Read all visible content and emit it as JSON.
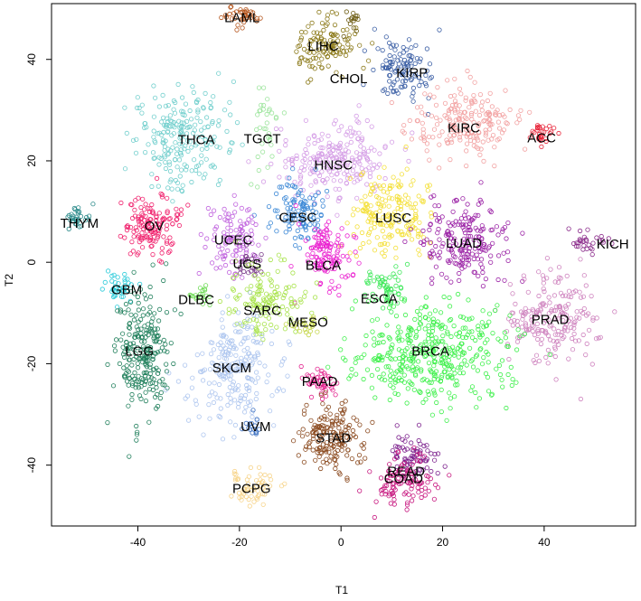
{
  "chart_data": {
    "type": "scatter",
    "title": "",
    "xlabel": "T1",
    "ylabel": "T2",
    "xlim": [
      -57,
      58
    ],
    "ylim": [
      -52,
      51
    ],
    "xticks": [
      -40,
      -20,
      0,
      20,
      40
    ],
    "yticks": [
      -40,
      -20,
      0,
      20,
      40
    ],
    "grid": false,
    "legend": "none",
    "clusters": [
      {
        "label": "LAML",
        "x": -20,
        "y": 48.5,
        "sx": 2.2,
        "sy": 1.0,
        "n": 40,
        "color": "#b5561e"
      },
      {
        "label": "LIHC",
        "x": -3,
        "y": 43,
        "sx": 3.5,
        "sy": 2.8,
        "n": 120,
        "color": "#8c7a1a"
      },
      {
        "label": "CHOL",
        "x": 2.5,
        "y": 47,
        "sx": 1.0,
        "sy": 1.5,
        "n": 15,
        "color": "#6b5a10"
      },
      {
        "label": "KIRP",
        "x": 12,
        "y": 38.5,
        "sx": 3.0,
        "sy": 3.2,
        "n": 110,
        "color": "#3b5fa5"
      },
      {
        "label": "KIRC",
        "x": 24,
        "y": 28,
        "sx": 5.0,
        "sy": 3.5,
        "n": 200,
        "color": "#f2a1a1"
      },
      {
        "label": "ACC",
        "x": 39.5,
        "y": 25,
        "sx": 1.6,
        "sy": 1.0,
        "n": 30,
        "color": "#e8253a"
      },
      {
        "label": "THCA",
        "x": -31,
        "y": 24,
        "sx": 4.5,
        "sy": 5.0,
        "n": 220,
        "color": "#72cfcd"
      },
      {
        "label": "TGCT",
        "x": -15,
        "y": 26,
        "sx": 1.2,
        "sy": 4.0,
        "n": 35,
        "color": "#9ee59e"
      },
      {
        "label": "HNSC",
        "x": -1,
        "y": 20,
        "sx": 5.5,
        "sy": 3.8,
        "n": 230,
        "color": "#d59ee6"
      },
      {
        "label": "THYM",
        "x": -52,
        "y": 8.5,
        "sx": 1.2,
        "sy": 1.3,
        "n": 30,
        "color": "#2a8a8a"
      },
      {
        "label": "OV",
        "x": -37,
        "y": 7.5,
        "sx": 2.8,
        "sy": 3.0,
        "n": 140,
        "color": "#f0236e"
      },
      {
        "label": "CESC",
        "x": -8,
        "y": 9.5,
        "sx": 2.8,
        "sy": 3.0,
        "n": 110,
        "color": "#3a87d6"
      },
      {
        "label": "LUSC",
        "x": 9.5,
        "y": 9.5,
        "sx": 4.0,
        "sy": 4.0,
        "n": 190,
        "color": "#f4e03b"
      },
      {
        "label": "LUAD",
        "x": 24,
        "y": 4,
        "sx": 4.0,
        "sy": 4.2,
        "n": 200,
        "color": "#9b23a6"
      },
      {
        "label": "KICH",
        "x": 49,
        "y": 4,
        "sx": 2.2,
        "sy": 1.0,
        "n": 30,
        "color": "#8a2a8a"
      },
      {
        "label": "UCEC",
        "x": -21,
        "y": 5,
        "sx": 2.4,
        "sy": 3.2,
        "n": 110,
        "color": "#c063de"
      },
      {
        "label": "UCS",
        "x": -18,
        "y": -0.5,
        "sx": 1.4,
        "sy": 1.2,
        "n": 25,
        "color": "#7a3a8a"
      },
      {
        "label": "BLCA",
        "x": -3,
        "y": 1.5,
        "sx": 2.6,
        "sy": 3.2,
        "n": 130,
        "color": "#ea23d0"
      },
      {
        "label": "GBM",
        "x": -43,
        "y": -5.5,
        "sx": 1.8,
        "sy": 1.3,
        "n": 40,
        "color": "#28cad9"
      },
      {
        "label": "DLBC",
        "x": -28,
        "y": -6.5,
        "sx": 1.2,
        "sy": 1.0,
        "n": 20,
        "color": "#6edb55"
      },
      {
        "label": "ESCA",
        "x": 9,
        "y": -5,
        "sx": 2.0,
        "sy": 1.8,
        "n": 60,
        "color": "#3fe85a"
      },
      {
        "label": "SARC",
        "x": -14,
        "y": -7.5,
        "sx": 3.8,
        "sy": 3.8,
        "n": 140,
        "color": "#a8e34b"
      },
      {
        "label": "MESO",
        "x": -7,
        "y": -12,
        "sx": 1.5,
        "sy": 1.2,
        "n": 25,
        "color": "#c5d64b"
      },
      {
        "label": "PRAD",
        "x": 41.5,
        "y": -11,
        "sx": 4.5,
        "sy": 4.5,
        "n": 200,
        "color": "#cf84bf"
      },
      {
        "label": "LGG",
        "x": -39,
        "y": -18,
        "sx": 2.8,
        "sy": 6.0,
        "n": 240,
        "color": "#22805d"
      },
      {
        "label": "BRCA",
        "x": 18,
        "y": -18,
        "sx": 8.0,
        "sy": 5.0,
        "n": 420,
        "color": "#3ef04b"
      },
      {
        "label": "SKCM",
        "x": -21,
        "y": -21,
        "sx": 4.0,
        "sy": 5.0,
        "n": 230,
        "color": "#aec6ef"
      },
      {
        "label": "PAAD",
        "x": -4,
        "y": -24,
        "sx": 2.0,
        "sy": 1.4,
        "n": 45,
        "color": "#e3238e"
      },
      {
        "label": "UVM",
        "x": -17,
        "y": -32.5,
        "sx": 1.0,
        "sy": 1.0,
        "n": 15,
        "color": "#3a6fc0"
      },
      {
        "label": "STAD",
        "x": -1.5,
        "y": -34.5,
        "sx": 3.2,
        "sy": 3.2,
        "n": 170,
        "color": "#8b4a1f"
      },
      {
        "label": "READ",
        "x": 14,
        "y": -38,
        "sx": 2.2,
        "sy": 2.5,
        "n": 70,
        "color": "#7b1f8c"
      },
      {
        "label": "COAD",
        "x": 12.5,
        "y": -43,
        "sx": 2.8,
        "sy": 2.5,
        "n": 110,
        "color": "#c7177f"
      },
      {
        "label": "PCPG",
        "x": -17.5,
        "y": -44.5,
        "sx": 2.2,
        "sy": 1.7,
        "n": 60,
        "color": "#f7d48a"
      }
    ],
    "labels": [
      {
        "text": "LAML",
        "x": -19.5,
        "y": 48.2
      },
      {
        "text": "LIHC",
        "x": -3.5,
        "y": 42.6
      },
      {
        "text": "CHOL",
        "x": 1.5,
        "y": 36.2
      },
      {
        "text": "KIRP",
        "x": 14,
        "y": 37.4
      },
      {
        "text": "KIRC",
        "x": 24.2,
        "y": 26.5
      },
      {
        "text": "ACC",
        "x": 39.5,
        "y": 24.5
      },
      {
        "text": "THCA",
        "x": -28.5,
        "y": 24.2
      },
      {
        "text": "TGCT",
        "x": -15.5,
        "y": 24.4
      },
      {
        "text": "HNSC",
        "x": -1.5,
        "y": 19.2
      },
      {
        "text": "THYM",
        "x": -51.5,
        "y": 7.7
      },
      {
        "text": "OV",
        "x": -36.8,
        "y": 7.2
      },
      {
        "text": "CESC",
        "x": -8.5,
        "y": 8.9
      },
      {
        "text": "LUSC",
        "x": 10.3,
        "y": 8.8
      },
      {
        "text": "LUAD",
        "x": 24.2,
        "y": 3.8
      },
      {
        "text": "KICH",
        "x": 53.5,
        "y": 3.6
      },
      {
        "text": "UCEC",
        "x": -21.2,
        "y": 4.4
      },
      {
        "text": "UCS",
        "x": -18.5,
        "y": -0.3
      },
      {
        "text": "BLCA",
        "x": -3.5,
        "y": -0.6
      },
      {
        "text": "GBM",
        "x": -42.2,
        "y": -5.4
      },
      {
        "text": "DLBC",
        "x": -28.5,
        "y": -7.4
      },
      {
        "text": "ESCA",
        "x": 7.5,
        "y": -7.2
      },
      {
        "text": "SARC",
        "x": -15.5,
        "y": -9.5
      },
      {
        "text": "MESO",
        "x": -6.5,
        "y": -11.8
      },
      {
        "text": "PRAD",
        "x": 41.2,
        "y": -11.3
      },
      {
        "text": "LGG",
        "x": -39.7,
        "y": -17.5
      },
      {
        "text": "BRCA",
        "x": 17.6,
        "y": -17.5
      },
      {
        "text": "SKCM",
        "x": -21.5,
        "y": -20.8
      },
      {
        "text": "PAAD",
        "x": -4.2,
        "y": -23.5
      },
      {
        "text": "UVM",
        "x": -16.8,
        "y": -32.4
      },
      {
        "text": "STAD",
        "x": -1.5,
        "y": -34.6
      },
      {
        "text": "READ",
        "x": 12.8,
        "y": -41.2
      },
      {
        "text": "COAD",
        "x": 12.3,
        "y": -42.6
      },
      {
        "text": "PCPG",
        "x": -17.6,
        "y": -44.6
      }
    ]
  }
}
